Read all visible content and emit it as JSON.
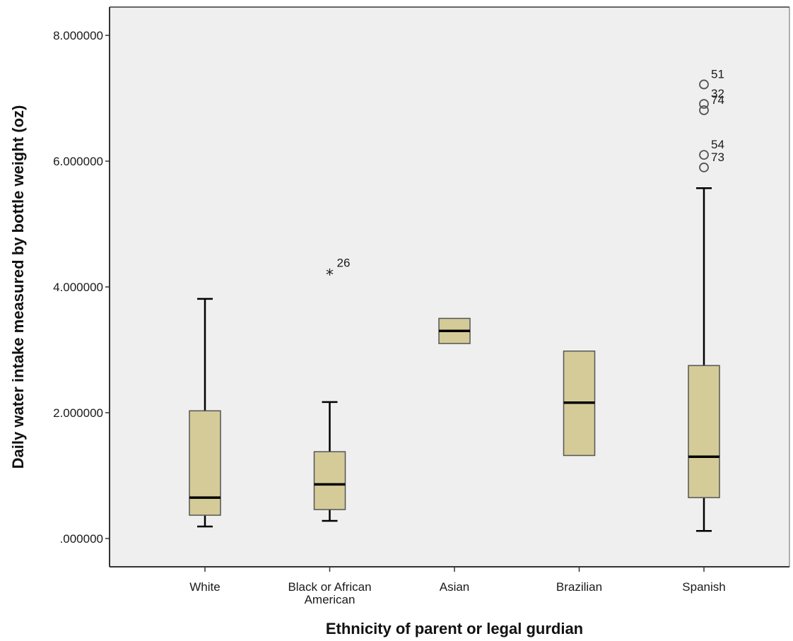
{
  "chart_data": {
    "type": "box",
    "xlabel": "Ethnicity of parent or legal gurdian",
    "ylabel": "Daily water intake measured by bottle weight (oz)",
    "ylim": [
      -0.45,
      8.45
    ],
    "yticks": [
      0,
      2,
      4,
      6,
      8
    ],
    "ytick_labels": [
      ".000000",
      "2.000000",
      "4.000000",
      "6.000000",
      "8.000000"
    ],
    "grid": false,
    "colors": {
      "plot_bg": "#efefef",
      "box_fill": "#d4cb98",
      "line": "#000000",
      "frame": "#666666"
    },
    "categories": [
      {
        "label": [
          "White"
        ],
        "min": 0.19,
        "q1": 0.37,
        "median": 0.65,
        "q3": 2.03,
        "max": 3.81,
        "outliers": []
      },
      {
        "label": [
          "Black or African",
          "American"
        ],
        "min": 0.28,
        "q1": 0.46,
        "median": 0.86,
        "q3": 1.38,
        "max": 2.17,
        "outliers": [
          {
            "value": 4.22,
            "id": "26",
            "marker": "star"
          }
        ]
      },
      {
        "label": [
          "Asian"
        ],
        "min": 3.1,
        "q1": 3.1,
        "median": 3.3,
        "q3": 3.5,
        "max": 3.5,
        "outliers": []
      },
      {
        "label": [
          "Brazilian"
        ],
        "min": 1.32,
        "q1": 1.32,
        "median": 2.16,
        "q3": 2.98,
        "max": 2.98,
        "outliers": []
      },
      {
        "label": [
          "Spanish"
        ],
        "min": 0.12,
        "q1": 0.65,
        "median": 1.3,
        "q3": 2.75,
        "max": 5.57,
        "outliers": [
          {
            "value": 7.22,
            "id": "51",
            "marker": "circle"
          },
          {
            "value": 6.91,
            "id": "32",
            "marker": "circle"
          },
          {
            "value": 6.81,
            "id": "74",
            "marker": "circle"
          },
          {
            "value": 6.1,
            "id": "54",
            "marker": "circle"
          },
          {
            "value": 5.9,
            "id": "73",
            "marker": "circle"
          }
        ]
      }
    ]
  }
}
